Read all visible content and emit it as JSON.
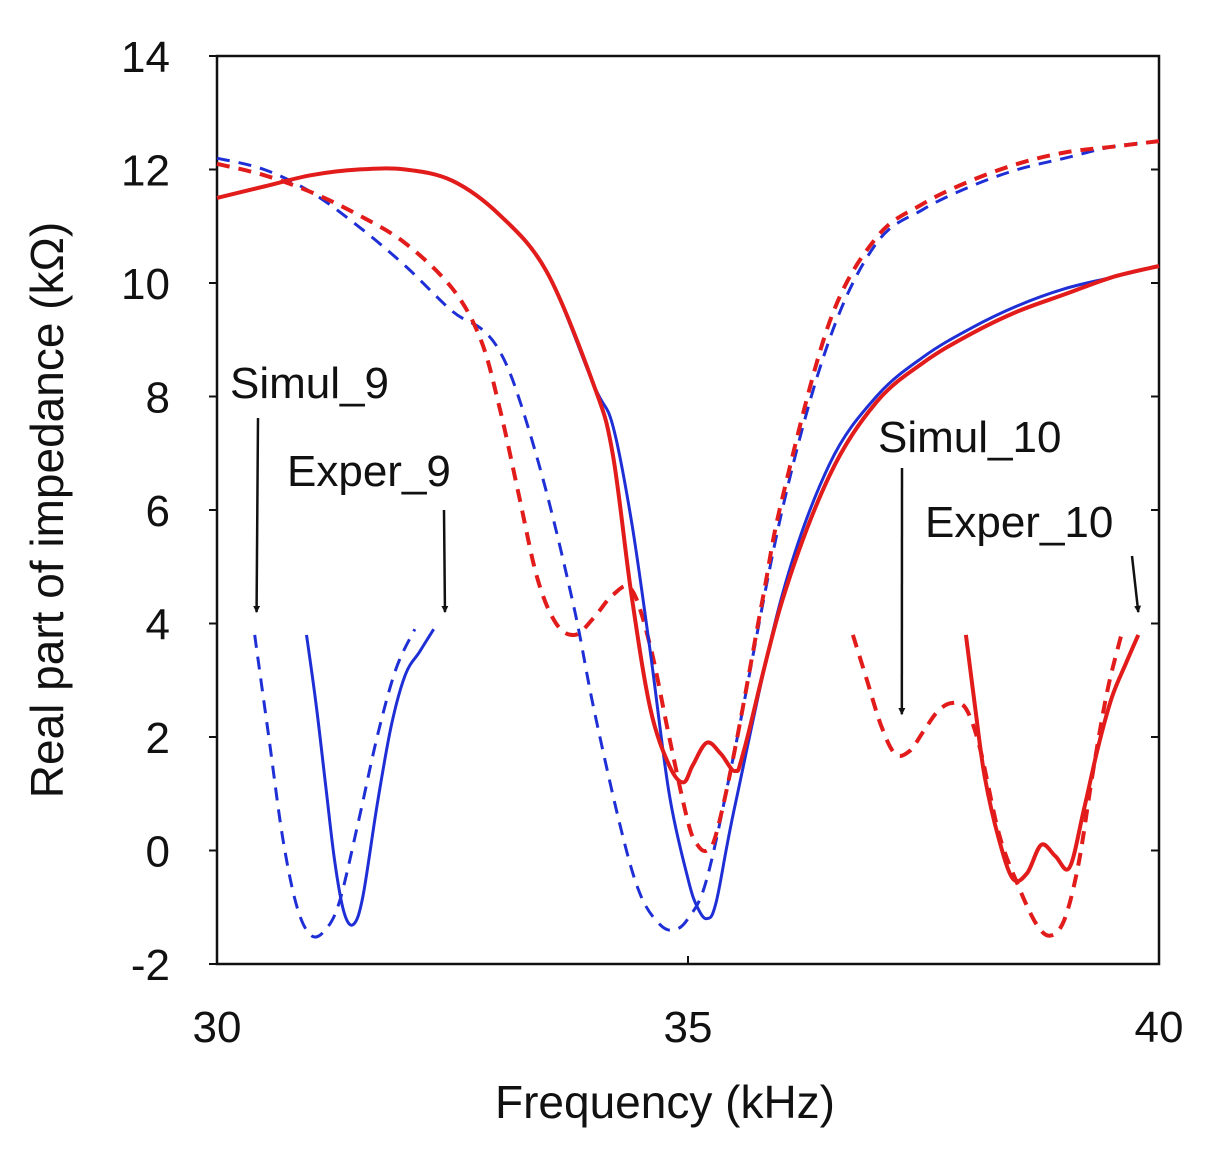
{
  "chart_data": {
    "type": "line",
    "title": "",
    "xlabel": "Frequency  (kHz)",
    "ylabel": "Real part of impedance (kΩ)",
    "xlim": [
      30,
      40
    ],
    "ylim": [
      -2,
      14
    ],
    "xticks": [
      30,
      35,
      40
    ],
    "yticks": [
      -2,
      0,
      2,
      4,
      6,
      8,
      10,
      12,
      14
    ],
    "grid": false,
    "legend": "none",
    "colors": {
      "blue": "#1f2fd6",
      "red": "#e21b1b"
    },
    "series": [
      {
        "name": "Simul_9 (upper)",
        "color": "blue",
        "dash": true,
        "x": [
          30.0,
          30.5,
          31.0,
          31.5,
          32.0,
          32.5,
          32.8,
          33.0,
          33.2,
          33.5,
          33.8,
          34.0,
          34.3,
          34.5,
          34.7,
          34.85,
          35.0,
          35.2,
          35.5,
          36.0,
          36.5,
          37.0,
          37.5,
          38.0,
          38.5,
          39.0,
          39.5,
          40.0
        ],
        "y": [
          12.2,
          12.0,
          11.6,
          11.0,
          10.3,
          9.5,
          9.2,
          8.8,
          8.0,
          6.3,
          4.2,
          2.5,
          0.3,
          -0.8,
          -1.3,
          -1.4,
          -1.2,
          -0.5,
          1.8,
          6.0,
          9.0,
          10.7,
          11.3,
          11.7,
          12.0,
          12.2,
          12.4,
          12.5
        ]
      },
      {
        "name": "Simul_10 (upper)",
        "color": "red",
        "dash": true,
        "x": [
          30.0,
          30.5,
          31.0,
          31.5,
          32.0,
          32.5,
          32.8,
          33.0,
          33.2,
          33.4,
          33.6,
          33.8,
          34.0,
          34.2,
          34.4,
          34.6,
          34.8,
          35.0,
          35.1,
          35.2,
          35.3,
          35.5,
          35.8,
          36.0,
          36.5,
          37.0,
          37.5,
          38.0,
          38.5,
          39.0,
          39.5,
          40.0
        ],
        "y": [
          12.1,
          11.9,
          11.6,
          11.2,
          10.7,
          9.9,
          9.0,
          7.8,
          6.3,
          4.8,
          4.0,
          3.8,
          4.1,
          4.5,
          4.6,
          3.6,
          2.0,
          0.5,
          0.1,
          0.0,
          0.3,
          1.8,
          4.5,
          6.2,
          9.3,
          10.8,
          11.4,
          11.8,
          12.1,
          12.3,
          12.4,
          12.5
        ]
      },
      {
        "name": "Exper_9 (upper)",
        "color": "blue",
        "dash": false,
        "x": [
          30.0,
          30.5,
          31.0,
          31.5,
          32.0,
          32.5,
          33.0,
          33.5,
          34.0,
          34.2,
          34.4,
          34.6,
          34.8,
          35.0,
          35.1,
          35.2,
          35.3,
          35.5,
          36.0,
          36.5,
          37.0,
          37.5,
          38.0,
          38.5,
          39.0,
          39.5,
          40.0
        ],
        "y": [
          11.5,
          11.7,
          11.9,
          12.0,
          12.0,
          11.8,
          11.2,
          10.2,
          8.2,
          7.5,
          5.8,
          3.5,
          1.0,
          -0.5,
          -1.0,
          -1.2,
          -0.9,
          0.8,
          4.5,
          6.8,
          8.0,
          8.7,
          9.2,
          9.6,
          9.9,
          10.1,
          10.3
        ]
      },
      {
        "name": "Exper_10 (upper)",
        "color": "red",
        "dash": false,
        "x": [
          30.0,
          30.5,
          31.0,
          31.5,
          32.0,
          32.5,
          33.0,
          33.5,
          34.0,
          34.2,
          34.4,
          34.6,
          34.8,
          34.95,
          35.05,
          35.2,
          35.35,
          35.5,
          35.6,
          36.0,
          36.5,
          37.0,
          37.5,
          38.0,
          38.5,
          39.0,
          39.5,
          40.0
        ],
        "y": [
          11.5,
          11.7,
          11.9,
          12.0,
          12.0,
          11.8,
          11.2,
          10.2,
          8.2,
          7.0,
          4.5,
          2.5,
          1.5,
          1.2,
          1.5,
          1.9,
          1.7,
          1.4,
          1.8,
          4.4,
          6.6,
          7.9,
          8.6,
          9.1,
          9.5,
          9.8,
          10.1,
          10.3
        ]
      },
      {
        "name": "Simul_9 (lower)",
        "color": "blue",
        "dash": true,
        "x": [
          30.4,
          30.55,
          30.7,
          30.85,
          31.0,
          31.15,
          31.3,
          31.5,
          31.7,
          31.9,
          32.1
        ],
        "y": [
          3.8,
          2.0,
          0.2,
          -1.0,
          -1.5,
          -1.4,
          -0.9,
          0.5,
          2.0,
          3.2,
          3.9
        ]
      },
      {
        "name": "Exper_9 (lower)",
        "color": "blue",
        "dash": false,
        "x": [
          30.95,
          31.05,
          31.15,
          31.25,
          31.35,
          31.45,
          31.55,
          31.7,
          31.85,
          32.0,
          32.15,
          32.3
        ],
        "y": [
          3.8,
          2.6,
          1.2,
          -0.2,
          -1.1,
          -1.3,
          -0.8,
          0.8,
          2.2,
          3.1,
          3.5,
          3.9
        ]
      },
      {
        "name": "Simul_10 (lower)",
        "color": "red",
        "dash": true,
        "x": [
          36.75,
          36.9,
          37.05,
          37.2,
          37.35,
          37.5,
          37.65,
          37.8,
          37.95,
          38.1,
          38.3,
          38.5,
          38.7,
          38.85,
          39.0,
          39.15,
          39.3,
          39.45,
          39.6
        ],
        "y": [
          3.8,
          3.0,
          2.2,
          1.7,
          1.75,
          2.1,
          2.45,
          2.6,
          2.5,
          1.8,
          0.3,
          -0.6,
          -1.3,
          -1.5,
          -1.2,
          -0.2,
          1.4,
          2.8,
          3.8
        ]
      },
      {
        "name": "Exper_10 (lower)",
        "color": "red",
        "dash": false,
        "x": [
          37.95,
          38.05,
          38.15,
          38.3,
          38.45,
          38.6,
          38.75,
          38.9,
          39.05,
          39.2,
          39.35,
          39.5,
          39.65,
          39.78
        ],
        "y": [
          3.8,
          2.5,
          1.3,
          0.2,
          -0.5,
          -0.4,
          0.1,
          -0.1,
          -0.3,
          0.7,
          1.8,
          2.7,
          3.3,
          3.8
        ]
      }
    ],
    "annotations": [
      {
        "text": "Simul_9",
        "arrow_to": [
          30.42,
          4.2
        ]
      },
      {
        "text": "Exper_9",
        "arrow_to": [
          32.42,
          4.2
        ]
      },
      {
        "text": "Simul_10",
        "arrow_to": [
          37.27,
          2.4
        ]
      },
      {
        "text": "Exper_10",
        "arrow_to": [
          39.78,
          4.2
        ]
      }
    ]
  }
}
